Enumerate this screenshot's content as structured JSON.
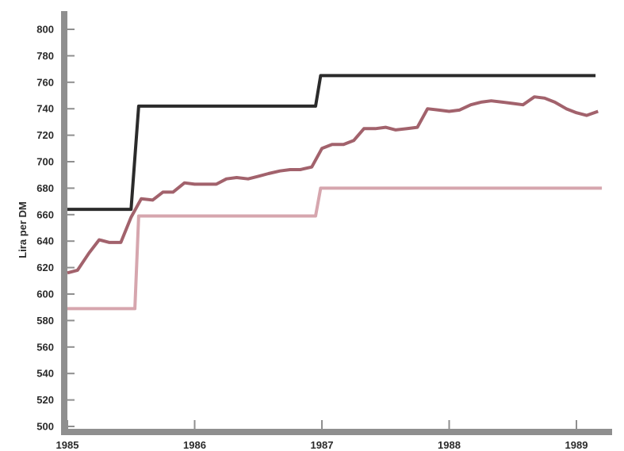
{
  "chart_data": {
    "type": "line",
    "title": "",
    "xlabel": "",
    "ylabel": "Lira per DM",
    "x_ticks": [
      "1985",
      "1986",
      "1987",
      "1988",
      "1989"
    ],
    "y_ticks": [
      "500",
      "520",
      "540",
      "560",
      "580",
      "600",
      "620",
      "640",
      "660",
      "680",
      "700",
      "720",
      "740",
      "760",
      "780",
      "800"
    ],
    "xlim": [
      1985,
      1989.25
    ],
    "ylim": [
      500,
      800
    ],
    "grid": false,
    "series": [
      {
        "color": "#2b2b2b",
        "x": [
          1985.0,
          1985.5,
          1985.56,
          1986.95,
          1986.99,
          1989.15
        ],
        "y": [
          664,
          664,
          742,
          742,
          765,
          765
        ]
      },
      {
        "color": "#a2626c",
        "x": [
          1985.0,
          1985.08,
          1985.17,
          1985.25,
          1985.33,
          1985.42,
          1985.5,
          1985.58,
          1985.67,
          1985.75,
          1985.83,
          1985.92,
          1986.0,
          1986.08,
          1986.17,
          1986.25,
          1986.33,
          1986.42,
          1986.5,
          1986.58,
          1986.67,
          1986.75,
          1986.83,
          1986.92,
          1987.0,
          1987.08,
          1987.17,
          1987.25,
          1987.33,
          1987.42,
          1987.5,
          1987.58,
          1987.67,
          1987.75,
          1987.83,
          1987.92,
          1988.0,
          1988.08,
          1988.17,
          1988.25,
          1988.33,
          1988.42,
          1988.5,
          1988.58,
          1988.67,
          1988.75,
          1988.83,
          1988.92,
          1989.0,
          1989.08,
          1989.17
        ],
        "y": [
          616,
          618,
          631,
          641,
          639,
          639,
          658,
          672,
          671,
          677,
          677,
          684,
          683,
          683,
          683,
          687,
          688,
          687,
          689,
          691,
          693,
          694,
          694,
          696,
          710,
          713,
          713,
          716,
          725,
          725,
          726,
          724,
          725,
          726,
          740,
          739,
          738,
          739,
          743,
          745,
          746,
          745,
          744,
          743,
          749,
          748,
          745,
          740,
          737,
          735,
          738
        ]
      },
      {
        "color": "#d6a6ae",
        "x": [
          1985.0,
          1985.53,
          1985.56,
          1986.95,
          1986.99,
          1989.2
        ],
        "y": [
          589,
          589,
          659,
          659,
          680,
          680
        ]
      }
    ]
  }
}
